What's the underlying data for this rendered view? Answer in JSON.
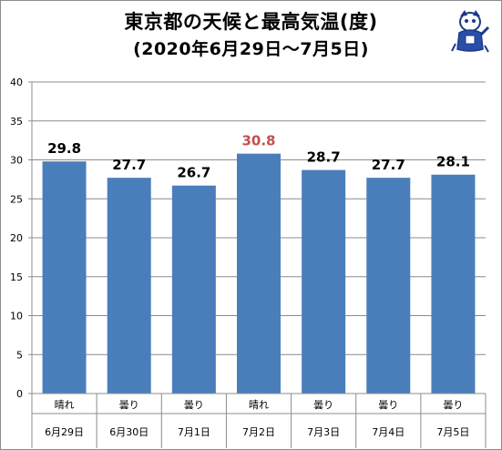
{
  "title": "東京都の天候と最高気温(度)",
  "subtitle": "(2020年6月29日～7月5日)",
  "colors": {
    "bar": "#4a7ebb",
    "highlight_label": "#c0504d",
    "label": "#000000",
    "grid": "#8c8c8c"
  },
  "chart_data": {
    "type": "bar",
    "weather": [
      "晴れ",
      "曇り",
      "曇り",
      "晴れ",
      "曇り",
      "曇り",
      "曇り"
    ],
    "dates": [
      "6月29日",
      "6月30日",
      "7月1日",
      "7月2日",
      "7月3日",
      "7月4日",
      "7月5日"
    ],
    "values": [
      29.8,
      27.7,
      26.7,
      30.8,
      28.7,
      27.7,
      28.1
    ],
    "value_labels": [
      "29.8",
      "27.7",
      "26.7",
      "30.8",
      "28.7",
      "27.7",
      "28.1"
    ],
    "highlight_index": 3,
    "ylim": [
      0,
      40
    ],
    "yticks": [
      "0",
      "5",
      "10",
      "15",
      "20",
      "25",
      "30",
      "35",
      "40"
    ],
    "grid": "horizontal",
    "legend": "none"
  }
}
